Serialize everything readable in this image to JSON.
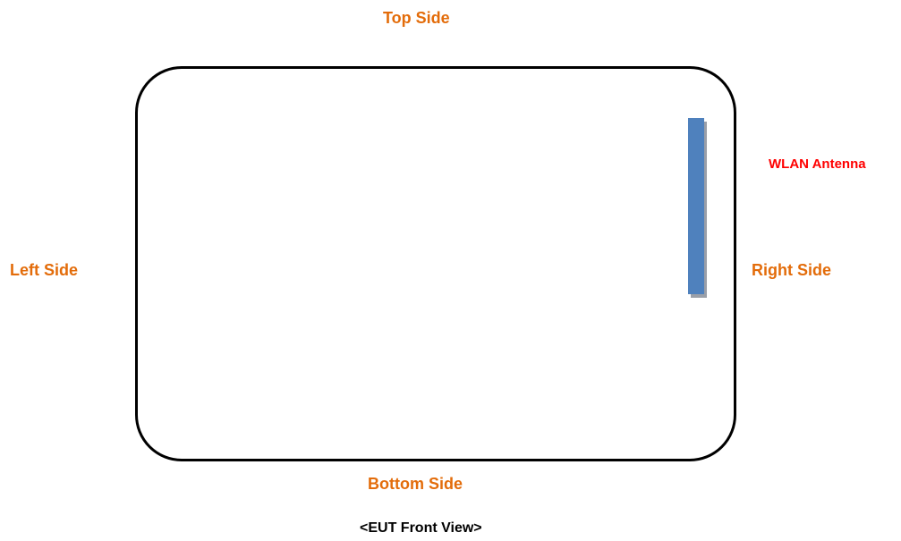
{
  "labels": {
    "top": "Top Side",
    "bottom": "Bottom Side",
    "left": "Left Side",
    "right": "Right Side",
    "antenna": "WLAN Antenna"
  },
  "caption": "<EUT Front View>",
  "colors": {
    "side_label": "#e36c0a",
    "antenna_label": "#ff0000",
    "antenna_fill": "#4f81bd",
    "outline": "#000000"
  }
}
